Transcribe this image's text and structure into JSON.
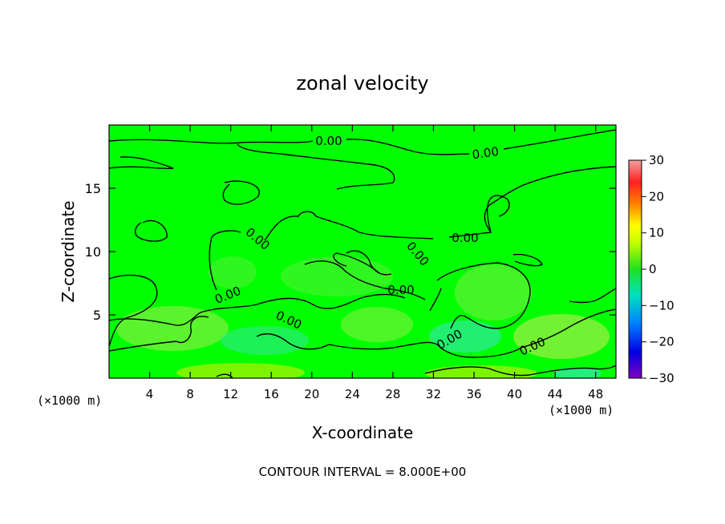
{
  "chart_data": {
    "type": "heatmap",
    "title": "zonal velocity",
    "xlabel": "X-coordinate",
    "ylabel": "Z-coordinate",
    "x_unit_left": "(×1000 m)",
    "x_unit_right": "(×1000 m)",
    "footer": "CONTOUR INTERVAL = 8.000E+00",
    "xlim": [
      0,
      50
    ],
    "ylim": [
      0,
      20
    ],
    "x_ticks": [
      4,
      8,
      12,
      16,
      20,
      24,
      28,
      32,
      36,
      40,
      44,
      48
    ],
    "y_ticks": [
      5,
      10,
      15
    ],
    "contour_interval": 8,
    "contour_level_label": "0.00",
    "colorbar": {
      "range": [
        -30,
        30
      ],
      "ticks": [
        30,
        20,
        10,
        0,
        -10,
        -20,
        -30
      ],
      "colors": [
        "#f4a0a0",
        "#ff2020",
        "#ff8000",
        "#ffff00",
        "#20e020",
        "#00e0c0",
        "#0080ff",
        "#0000e0",
        "#8000c0"
      ]
    },
    "field_colors": {
      "zero": "#00ff00",
      "weak_positive": "#90ee40",
      "weak_negative": "#40e890"
    }
  }
}
